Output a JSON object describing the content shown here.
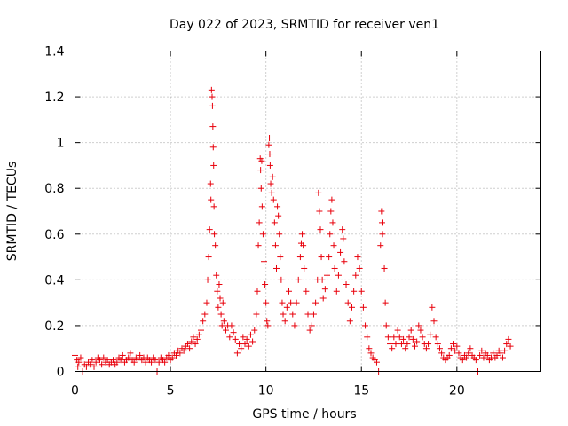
{
  "chart_data": {
    "type": "scatter",
    "title": "Day 022 of 2023, SRMTID for receiver ven1",
    "xlabel": "GPS time / hours",
    "ylabel": "SRMTID / TECUs",
    "xlim": [
      0,
      24.4
    ],
    "ylim": [
      0,
      1.4
    ],
    "xticks": [
      0,
      5,
      10,
      15,
      20
    ],
    "xtick_labels": [
      "0",
      "5",
      "10",
      "15",
      "20"
    ],
    "yticks": [
      0,
      0.2,
      0.4,
      0.6,
      0.8,
      1,
      1.2,
      1.4
    ],
    "ytick_labels": [
      "0",
      "0.2",
      "0.4",
      "0.6",
      "0.8",
      "1",
      "1.2",
      "1.4"
    ],
    "grid": true,
    "marker": "+",
    "series_color": "#e8000b",
    "series": [
      {
        "name": "SRMTID",
        "points": [
          [
            0.0,
            0.07
          ],
          [
            0.1,
            0.05
          ],
          [
            0.15,
            0.02
          ],
          [
            0.2,
            0.04
          ],
          [
            0.3,
            0.06
          ],
          [
            0.4,
            0.0
          ],
          [
            0.5,
            0.03
          ],
          [
            0.6,
            0.02
          ],
          [
            0.7,
            0.04
          ],
          [
            0.8,
            0.03
          ],
          [
            0.9,
            0.05
          ],
          [
            1.0,
            0.02
          ],
          [
            1.1,
            0.04
          ],
          [
            1.2,
            0.06
          ],
          [
            1.3,
            0.05
          ],
          [
            1.4,
            0.03
          ],
          [
            1.5,
            0.06
          ],
          [
            1.6,
            0.04
          ],
          [
            1.7,
            0.05
          ],
          [
            1.8,
            0.03
          ],
          [
            1.9,
            0.04
          ],
          [
            2.0,
            0.05
          ],
          [
            2.1,
            0.03
          ],
          [
            2.2,
            0.04
          ],
          [
            2.3,
            0.06
          ],
          [
            2.4,
            0.05
          ],
          [
            2.5,
            0.07
          ],
          [
            2.6,
            0.04
          ],
          [
            2.7,
            0.05
          ],
          [
            2.8,
            0.06
          ],
          [
            2.9,
            0.08
          ],
          [
            3.0,
            0.05
          ],
          [
            3.1,
            0.04
          ],
          [
            3.2,
            0.06
          ],
          [
            3.3,
            0.05
          ],
          [
            3.4,
            0.07
          ],
          [
            3.5,
            0.05
          ],
          [
            3.6,
            0.06
          ],
          [
            3.7,
            0.04
          ],
          [
            3.8,
            0.06
          ],
          [
            3.9,
            0.05
          ],
          [
            4.0,
            0.04
          ],
          [
            4.1,
            0.06
          ],
          [
            4.2,
            0.05
          ],
          [
            4.3,
            0.0
          ],
          [
            4.4,
            0.04
          ],
          [
            4.5,
            0.06
          ],
          [
            4.6,
            0.05
          ],
          [
            4.7,
            0.04
          ],
          [
            4.8,
            0.06
          ],
          [
            4.9,
            0.07
          ],
          [
            5.0,
            0.05
          ],
          [
            5.1,
            0.06
          ],
          [
            5.2,
            0.08
          ],
          [
            5.3,
            0.07
          ],
          [
            5.4,
            0.09
          ],
          [
            5.5,
            0.08
          ],
          [
            5.6,
            0.1
          ],
          [
            5.7,
            0.09
          ],
          [
            5.8,
            0.11
          ],
          [
            5.9,
            0.12
          ],
          [
            6.0,
            0.1
          ],
          [
            6.1,
            0.13
          ],
          [
            6.2,
            0.15
          ],
          [
            6.3,
            0.12
          ],
          [
            6.4,
            0.14
          ],
          [
            6.5,
            0.16
          ],
          [
            6.6,
            0.18
          ],
          [
            6.7,
            0.22
          ],
          [
            6.8,
            0.25
          ],
          [
            6.9,
            0.3
          ],
          [
            6.95,
            0.4
          ],
          [
            7.0,
            0.5
          ],
          [
            7.05,
            0.62
          ],
          [
            7.1,
            0.82
          ],
          [
            7.12,
            0.75
          ],
          [
            7.15,
            1.23
          ],
          [
            7.18,
            1.2
          ],
          [
            7.2,
            1.16
          ],
          [
            7.22,
            1.07
          ],
          [
            7.24,
            0.98
          ],
          [
            7.26,
            0.9
          ],
          [
            7.28,
            0.72
          ],
          [
            7.3,
            0.6
          ],
          [
            7.35,
            0.55
          ],
          [
            7.4,
            0.42
          ],
          [
            7.45,
            0.35
          ],
          [
            7.5,
            0.28
          ],
          [
            7.55,
            0.38
          ],
          [
            7.6,
            0.32
          ],
          [
            7.65,
            0.25
          ],
          [
            7.7,
            0.2
          ],
          [
            7.75,
            0.3
          ],
          [
            7.8,
            0.22
          ],
          [
            7.9,
            0.18
          ],
          [
            8.0,
            0.2
          ],
          [
            8.1,
            0.15
          ],
          [
            8.2,
            0.2
          ],
          [
            8.3,
            0.17
          ],
          [
            8.4,
            0.14
          ],
          [
            8.5,
            0.08
          ],
          [
            8.6,
            0.12
          ],
          [
            8.7,
            0.1
          ],
          [
            8.8,
            0.15
          ],
          [
            8.9,
            0.12
          ],
          [
            9.0,
            0.14
          ],
          [
            9.1,
            0.11
          ],
          [
            9.2,
            0.16
          ],
          [
            9.3,
            0.13
          ],
          [
            9.4,
            0.18
          ],
          [
            9.5,
            0.25
          ],
          [
            9.55,
            0.35
          ],
          [
            9.6,
            0.55
          ],
          [
            9.65,
            0.65
          ],
          [
            9.7,
            0.93
          ],
          [
            9.72,
            0.88
          ],
          [
            9.75,
            0.8
          ],
          [
            9.78,
            0.92
          ],
          [
            9.8,
            0.72
          ],
          [
            9.85,
            0.6
          ],
          [
            9.9,
            0.48
          ],
          [
            9.95,
            0.38
          ],
          [
            10.0,
            0.3
          ],
          [
            10.05,
            0.22
          ],
          [
            10.1,
            0.2
          ],
          [
            10.15,
            0.99
          ],
          [
            10.18,
            1.02
          ],
          [
            10.2,
            0.95
          ],
          [
            10.22,
            0.9
          ],
          [
            10.25,
            0.82
          ],
          [
            10.3,
            0.78
          ],
          [
            10.35,
            0.85
          ],
          [
            10.4,
            0.75
          ],
          [
            10.45,
            0.65
          ],
          [
            10.5,
            0.55
          ],
          [
            10.55,
            0.45
          ],
          [
            10.6,
            0.72
          ],
          [
            10.65,
            0.68
          ],
          [
            10.7,
            0.6
          ],
          [
            10.75,
            0.5
          ],
          [
            10.8,
            0.4
          ],
          [
            10.85,
            0.3
          ],
          [
            10.9,
            0.25
          ],
          [
            11.0,
            0.22
          ],
          [
            11.1,
            0.28
          ],
          [
            11.2,
            0.35
          ],
          [
            11.3,
            0.3
          ],
          [
            11.4,
            0.25
          ],
          [
            11.5,
            0.2
          ],
          [
            11.6,
            0.3
          ],
          [
            11.7,
            0.4
          ],
          [
            11.8,
            0.5
          ],
          [
            11.85,
            0.56
          ],
          [
            11.9,
            0.6
          ],
          [
            11.95,
            0.55
          ],
          [
            12.0,
            0.45
          ],
          [
            12.1,
            0.35
          ],
          [
            12.2,
            0.25
          ],
          [
            12.3,
            0.18
          ],
          [
            12.4,
            0.2
          ],
          [
            12.5,
            0.25
          ],
          [
            12.6,
            0.3
          ],
          [
            12.7,
            0.4
          ],
          [
            12.75,
            0.78
          ],
          [
            12.8,
            0.7
          ],
          [
            12.85,
            0.62
          ],
          [
            12.9,
            0.5
          ],
          [
            12.95,
            0.4
          ],
          [
            13.0,
            0.32
          ],
          [
            13.1,
            0.36
          ],
          [
            13.2,
            0.42
          ],
          [
            13.3,
            0.5
          ],
          [
            13.35,
            0.6
          ],
          [
            13.4,
            0.7
          ],
          [
            13.45,
            0.75
          ],
          [
            13.5,
            0.65
          ],
          [
            13.55,
            0.55
          ],
          [
            13.6,
            0.45
          ],
          [
            13.7,
            0.35
          ],
          [
            13.8,
            0.42
          ],
          [
            13.9,
            0.52
          ],
          [
            14.0,
            0.62
          ],
          [
            14.05,
            0.58
          ],
          [
            14.1,
            0.48
          ],
          [
            14.2,
            0.38
          ],
          [
            14.3,
            0.3
          ],
          [
            14.4,
            0.22
          ],
          [
            14.5,
            0.28
          ],
          [
            14.6,
            0.35
          ],
          [
            14.7,
            0.42
          ],
          [
            14.8,
            0.5
          ],
          [
            14.9,
            0.45
          ],
          [
            15.0,
            0.35
          ],
          [
            15.1,
            0.28
          ],
          [
            15.2,
            0.2
          ],
          [
            15.3,
            0.15
          ],
          [
            15.4,
            0.1
          ],
          [
            15.5,
            0.08
          ],
          [
            15.6,
            0.06
          ],
          [
            15.7,
            0.05
          ],
          [
            15.8,
            0.04
          ],
          [
            15.9,
            0.0
          ],
          [
            16.0,
            0.55
          ],
          [
            16.05,
            0.7
          ],
          [
            16.08,
            0.65
          ],
          [
            16.1,
            0.6
          ],
          [
            16.2,
            0.45
          ],
          [
            16.25,
            0.3
          ],
          [
            16.3,
            0.2
          ],
          [
            16.4,
            0.15
          ],
          [
            16.5,
            0.12
          ],
          [
            16.6,
            0.1
          ],
          [
            16.7,
            0.15
          ],
          [
            16.8,
            0.12
          ],
          [
            16.9,
            0.18
          ],
          [
            17.0,
            0.15
          ],
          [
            17.1,
            0.12
          ],
          [
            17.2,
            0.14
          ],
          [
            17.3,
            0.1
          ],
          [
            17.4,
            0.12
          ],
          [
            17.5,
            0.15
          ],
          [
            17.6,
            0.18
          ],
          [
            17.7,
            0.14
          ],
          [
            17.8,
            0.11
          ],
          [
            17.9,
            0.13
          ],
          [
            18.0,
            0.2
          ],
          [
            18.1,
            0.18
          ],
          [
            18.2,
            0.15
          ],
          [
            18.3,
            0.12
          ],
          [
            18.4,
            0.1
          ],
          [
            18.5,
            0.12
          ],
          [
            18.6,
            0.16
          ],
          [
            18.7,
            0.28
          ],
          [
            18.8,
            0.22
          ],
          [
            18.9,
            0.15
          ],
          [
            19.0,
            0.12
          ],
          [
            19.1,
            0.1
          ],
          [
            19.2,
            0.08
          ],
          [
            19.3,
            0.06
          ],
          [
            19.4,
            0.05
          ],
          [
            19.5,
            0.06
          ],
          [
            19.6,
            0.07
          ],
          [
            19.7,
            0.1
          ],
          [
            19.8,
            0.12
          ],
          [
            19.9,
            0.09
          ],
          [
            20.0,
            0.11
          ],
          [
            20.1,
            0.08
          ],
          [
            20.2,
            0.06
          ],
          [
            20.3,
            0.05
          ],
          [
            20.4,
            0.07
          ],
          [
            20.5,
            0.06
          ],
          [
            20.6,
            0.08
          ],
          [
            20.7,
            0.1
          ],
          [
            20.8,
            0.07
          ],
          [
            20.9,
            0.06
          ],
          [
            21.0,
            0.05
          ],
          [
            21.1,
            0.0
          ],
          [
            21.2,
            0.07
          ],
          [
            21.3,
            0.09
          ],
          [
            21.4,
            0.06
          ],
          [
            21.5,
            0.08
          ],
          [
            21.6,
            0.07
          ],
          [
            21.7,
            0.05
          ],
          [
            21.8,
            0.06
          ],
          [
            21.9,
            0.08
          ],
          [
            22.0,
            0.06
          ],
          [
            22.1,
            0.07
          ],
          [
            22.2,
            0.09
          ],
          [
            22.3,
            0.08
          ],
          [
            22.4,
            0.06
          ],
          [
            22.5,
            0.09
          ],
          [
            22.6,
            0.12
          ],
          [
            22.7,
            0.14
          ],
          [
            22.8,
            0.11
          ]
        ]
      }
    ]
  }
}
